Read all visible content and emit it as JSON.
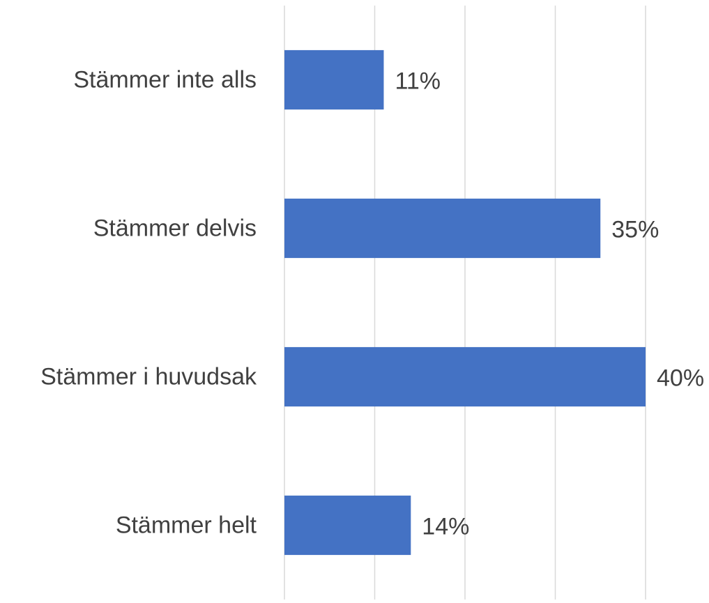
{
  "chart_data": {
    "type": "barh",
    "categories": [
      "Stämmer inte alls",
      "Stämmer delvis",
      "Stämmer i huvudsak",
      "Stämmer helt"
    ],
    "values": [
      11,
      35,
      40,
      14
    ],
    "value_labels": [
      "11%",
      "35%",
      "40%",
      "14%"
    ],
    "color": "#4472c4",
    "xlim": [
      0,
      40
    ],
    "xticks": [
      0,
      10,
      20,
      30,
      40
    ],
    "grid": true
  }
}
